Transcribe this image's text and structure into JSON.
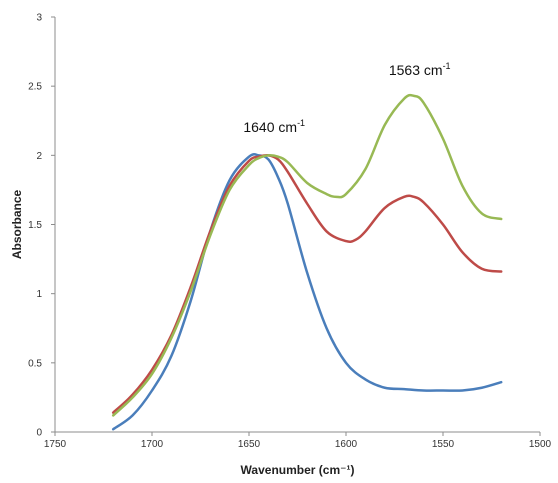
{
  "chart_data": {
    "type": "line",
    "xlabel": "Wavenumber (cm⁻¹)",
    "ylabel": "Absorbance",
    "xlim": [
      1750,
      1500
    ],
    "ylim": [
      0,
      3
    ],
    "x_reversed": true,
    "grid": false,
    "legend": "none",
    "x_ticks": [
      "1750",
      "1700",
      "1650",
      "1600",
      "1550",
      "1500"
    ],
    "y_ticks": [
      "0",
      "0.5",
      "1",
      "1.5",
      "2",
      "2.5",
      "3"
    ],
    "annotations": [
      {
        "text": "1640 cm",
        "sup": "-1",
        "x": 1637,
        "y": 2.17
      },
      {
        "text": "1563 cm",
        "sup": "-1",
        "x": 1562,
        "y": 2.58
      }
    ],
    "series": [
      {
        "color": "#4a7ebb",
        "x": [
          1720,
          1710,
          1700,
          1690,
          1680,
          1670,
          1660,
          1650,
          1645,
          1640,
          1635,
          1630,
          1620,
          1610,
          1600,
          1590,
          1580,
          1570,
          1560,
          1550,
          1540,
          1530,
          1520
        ],
        "y": [
          0.02,
          0.12,
          0.3,
          0.55,
          0.95,
          1.45,
          1.82,
          1.99,
          2.0,
          1.97,
          1.84,
          1.65,
          1.15,
          0.75,
          0.5,
          0.38,
          0.32,
          0.31,
          0.3,
          0.3,
          0.3,
          0.32,
          0.36
        ]
      },
      {
        "color": "#be4b48",
        "x": [
          1720,
          1710,
          1700,
          1690,
          1680,
          1670,
          1660,
          1650,
          1645,
          1640,
          1635,
          1630,
          1620,
          1610,
          1600,
          1595,
          1590,
          1580,
          1570,
          1565,
          1560,
          1550,
          1540,
          1530,
          1520
        ],
        "y": [
          0.14,
          0.27,
          0.45,
          0.7,
          1.05,
          1.45,
          1.78,
          1.96,
          1.99,
          2.0,
          1.97,
          1.88,
          1.65,
          1.45,
          1.38,
          1.39,
          1.45,
          1.62,
          1.7,
          1.7,
          1.66,
          1.5,
          1.3,
          1.18,
          1.16
        ]
      },
      {
        "color": "#98b954",
        "x": [
          1720,
          1710,
          1700,
          1690,
          1680,
          1670,
          1660,
          1650,
          1645,
          1640,
          1635,
          1630,
          1620,
          1610,
          1605,
          1600,
          1590,
          1580,
          1570,
          1565,
          1560,
          1550,
          1540,
          1530,
          1520
        ],
        "y": [
          0.12,
          0.25,
          0.42,
          0.68,
          1.02,
          1.42,
          1.75,
          1.93,
          1.98,
          2.0,
          1.99,
          1.95,
          1.8,
          1.72,
          1.7,
          1.72,
          1.9,
          2.22,
          2.41,
          2.43,
          2.38,
          2.12,
          1.78,
          1.58,
          1.54
        ]
      }
    ]
  }
}
